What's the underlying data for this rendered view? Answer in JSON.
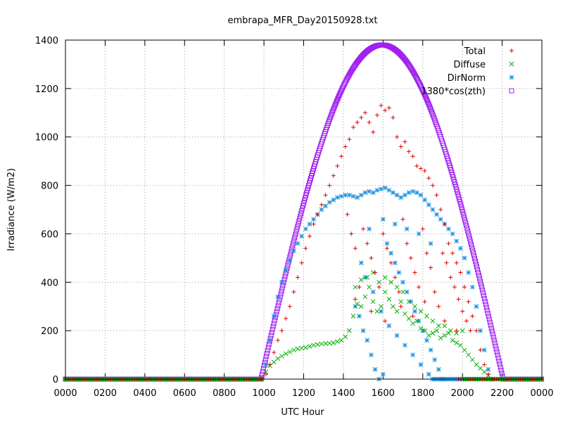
{
  "chart_data": {
    "type": "scatter",
    "title": "embrapa_MFR_Day20150928.txt",
    "xlabel": "UTC Hour",
    "ylabel": "Irradiance (W/m2)",
    "xlim": [
      0,
      24
    ],
    "ylim": [
      0,
      1400
    ],
    "grid": true,
    "legend_position": "top-right",
    "x_ticks": [
      {
        "x": 0,
        "label": "0000"
      },
      {
        "x": 2,
        "label": "0200"
      },
      {
        "x": 4,
        "label": "0400"
      },
      {
        "x": 6,
        "label": "0600"
      },
      {
        "x": 8,
        "label": "0800"
      },
      {
        "x": 10,
        "label": "1000"
      },
      {
        "x": 12,
        "label": "1200"
      },
      {
        "x": 14,
        "label": "1400"
      },
      {
        "x": 16,
        "label": "1600"
      },
      {
        "x": 18,
        "label": "1800"
      },
      {
        "x": 20,
        "label": "2000"
      },
      {
        "x": 22,
        "label": "2200"
      },
      {
        "x": 24,
        "label": "0000"
      }
    ],
    "y_ticks": [
      0,
      200,
      400,
      600,
      800,
      1000,
      1200,
      1400
    ],
    "series": [
      {
        "name": "Total",
        "marker": "plus",
        "color": "#e00000",
        "points": [
          [
            9.9,
            0
          ],
          [
            10.1,
            20
          ],
          [
            10.3,
            60
          ],
          [
            10.5,
            110
          ],
          [
            10.7,
            160
          ],
          [
            10.9,
            200
          ],
          [
            11.1,
            250
          ],
          [
            11.3,
            300
          ],
          [
            11.5,
            360
          ],
          [
            11.7,
            420
          ],
          [
            11.9,
            480
          ],
          [
            12.1,
            540
          ],
          [
            12.3,
            590
          ],
          [
            12.5,
            640
          ],
          [
            12.7,
            680
          ],
          [
            12.9,
            720
          ],
          [
            13.1,
            760
          ],
          [
            13.3,
            800
          ],
          [
            13.5,
            840
          ],
          [
            13.7,
            880
          ],
          [
            13.9,
            920
          ],
          [
            14.1,
            960
          ],
          [
            14.3,
            990
          ],
          [
            14.5,
            1040
          ],
          [
            14.7,
            1060
          ],
          [
            14.9,
            1080
          ],
          [
            15.1,
            1100
          ],
          [
            15.3,
            1060
          ],
          [
            15.5,
            1020
          ],
          [
            15.7,
            1090
          ],
          [
            15.9,
            1130
          ],
          [
            16.1,
            1110
          ],
          [
            16.3,
            1120
          ],
          [
            16.5,
            1080
          ],
          [
            16.7,
            1000
          ],
          [
            16.9,
            960
          ],
          [
            17.1,
            980
          ],
          [
            17.3,
            940
          ],
          [
            17.5,
            920
          ],
          [
            17.7,
            880
          ],
          [
            17.9,
            870
          ],
          [
            18.1,
            860
          ],
          [
            18.3,
            830
          ],
          [
            18.5,
            800
          ],
          [
            18.7,
            760
          ],
          [
            18.9,
            700
          ],
          [
            19.1,
            640
          ],
          [
            19.3,
            560
          ],
          [
            19.5,
            520
          ],
          [
            19.7,
            480
          ],
          [
            19.9,
            440
          ],
          [
            20.1,
            380
          ],
          [
            20.3,
            320
          ],
          [
            20.5,
            260
          ],
          [
            20.7,
            200
          ],
          [
            20.9,
            120
          ],
          [
            21.1,
            60
          ],
          [
            21.3,
            20
          ],
          [
            21.5,
            0
          ],
          [
            15.0,
            620
          ],
          [
            15.2,
            560
          ],
          [
            15.4,
            500
          ],
          [
            15.6,
            440
          ],
          [
            15.8,
            380
          ],
          [
            16.0,
            600
          ],
          [
            16.2,
            540
          ],
          [
            16.4,
            480
          ],
          [
            16.6,
            420
          ],
          [
            16.8,
            360
          ],
          [
            17.0,
            660
          ],
          [
            17.2,
            560
          ],
          [
            17.4,
            500
          ],
          [
            17.6,
            440
          ],
          [
            17.8,
            380
          ],
          [
            18.0,
            620
          ],
          [
            18.2,
            520
          ],
          [
            18.4,
            460
          ],
          [
            18.6,
            360
          ],
          [
            18.8,
            300
          ],
          [
            19.0,
            520
          ],
          [
            19.2,
            480
          ],
          [
            19.4,
            420
          ],
          [
            19.6,
            380
          ],
          [
            19.8,
            330
          ],
          [
            20.0,
            280
          ],
          [
            20.2,
            240
          ],
          [
            20.4,
            200
          ],
          [
            14.2,
            680
          ],
          [
            14.4,
            600
          ],
          [
            14.6,
            540
          ],
          [
            14.8,
            380
          ],
          [
            14.6,
            330
          ],
          [
            15.4,
            280
          ],
          [
            16.1,
            240
          ],
          [
            16.9,
            300
          ],
          [
            17.5,
            260
          ],
          [
            18.1,
            320
          ],
          [
            19.1,
            240
          ],
          [
            19.7,
            200
          ]
        ]
      },
      {
        "name": "Diffuse",
        "marker": "cross",
        "color": "#00b000",
        "points": [
          [
            9.9,
            0
          ],
          [
            10.1,
            30
          ],
          [
            10.3,
            55
          ],
          [
            10.5,
            70
          ],
          [
            10.7,
            85
          ],
          [
            10.9,
            95
          ],
          [
            11.1,
            105
          ],
          [
            11.3,
            112
          ],
          [
            11.5,
            120
          ],
          [
            11.7,
            125
          ],
          [
            11.9,
            128
          ],
          [
            12.1,
            130
          ],
          [
            12.3,
            135
          ],
          [
            12.5,
            140
          ],
          [
            12.7,
            143
          ],
          [
            12.9,
            145
          ],
          [
            13.1,
            147
          ],
          [
            13.3,
            148
          ],
          [
            13.5,
            150
          ],
          [
            13.7,
            155
          ],
          [
            13.9,
            160
          ],
          [
            14.1,
            175
          ],
          [
            14.3,
            200
          ],
          [
            14.5,
            260
          ],
          [
            14.7,
            310
          ],
          [
            14.9,
            300
          ],
          [
            15.1,
            340
          ],
          [
            15.3,
            380
          ],
          [
            15.5,
            320
          ],
          [
            15.7,
            280
          ],
          [
            15.9,
            300
          ],
          [
            16.1,
            360
          ],
          [
            16.3,
            330
          ],
          [
            16.5,
            300
          ],
          [
            16.7,
            280
          ],
          [
            16.9,
            320
          ],
          [
            17.1,
            270
          ],
          [
            17.3,
            250
          ],
          [
            17.5,
            230
          ],
          [
            17.7,
            240
          ],
          [
            17.9,
            210
          ],
          [
            18.1,
            200
          ],
          [
            18.3,
            180
          ],
          [
            18.5,
            190
          ],
          [
            18.7,
            200
          ],
          [
            18.9,
            170
          ],
          [
            19.1,
            180
          ],
          [
            19.3,
            190
          ],
          [
            19.5,
            160
          ],
          [
            19.7,
            150
          ],
          [
            19.9,
            140
          ],
          [
            20.1,
            120
          ],
          [
            20.3,
            100
          ],
          [
            20.5,
            80
          ],
          [
            20.7,
            60
          ],
          [
            20.9,
            45
          ],
          [
            21.1,
            30
          ],
          [
            21.3,
            15
          ],
          [
            21.5,
            0
          ],
          [
            14.6,
            380
          ],
          [
            14.9,
            410
          ],
          [
            15.2,
            420
          ],
          [
            15.5,
            440
          ],
          [
            15.8,
            400
          ],
          [
            16.1,
            420
          ],
          [
            16.4,
            400
          ],
          [
            16.7,
            380
          ],
          [
            17.0,
            360
          ],
          [
            17.3,
            320
          ],
          [
            17.6,
            300
          ],
          [
            17.9,
            280
          ],
          [
            18.2,
            260
          ],
          [
            18.5,
            240
          ],
          [
            18.8,
            220
          ],
          [
            19.1,
            220
          ],
          [
            19.4,
            200
          ],
          [
            19.7,
            190
          ],
          [
            20.0,
            200
          ]
        ]
      },
      {
        "name": "DirNorm",
        "marker": "star",
        "color": "#1a90e0",
        "points": [
          [
            9.9,
            0
          ],
          [
            10.1,
            60
          ],
          [
            10.3,
            160
          ],
          [
            10.5,
            260
          ],
          [
            10.7,
            340
          ],
          [
            10.9,
            400
          ],
          [
            11.1,
            450
          ],
          [
            11.3,
            490
          ],
          [
            11.5,
            530
          ],
          [
            11.7,
            560
          ],
          [
            11.9,
            590
          ],
          [
            12.1,
            620
          ],
          [
            12.3,
            640
          ],
          [
            12.5,
            660
          ],
          [
            12.7,
            680
          ],
          [
            12.9,
            700
          ],
          [
            13.1,
            715
          ],
          [
            13.3,
            730
          ],
          [
            13.5,
            740
          ],
          [
            13.7,
            750
          ],
          [
            13.9,
            755
          ],
          [
            14.1,
            760
          ],
          [
            14.3,
            760
          ],
          [
            14.5,
            755
          ],
          [
            14.7,
            750
          ],
          [
            14.9,
            760
          ],
          [
            15.1,
            770
          ],
          [
            15.3,
            775
          ],
          [
            15.5,
            770
          ],
          [
            15.7,
            780
          ],
          [
            15.9,
            785
          ],
          [
            16.1,
            790
          ],
          [
            16.3,
            780
          ],
          [
            16.5,
            770
          ],
          [
            16.7,
            760
          ],
          [
            16.9,
            750
          ],
          [
            17.1,
            760
          ],
          [
            17.3,
            770
          ],
          [
            17.5,
            775
          ],
          [
            17.7,
            770
          ],
          [
            17.9,
            760
          ],
          [
            18.1,
            740
          ],
          [
            18.3,
            720
          ],
          [
            18.5,
            700
          ],
          [
            18.7,
            680
          ],
          [
            18.9,
            660
          ],
          [
            19.1,
            640
          ],
          [
            19.3,
            620
          ],
          [
            19.5,
            600
          ],
          [
            19.7,
            570
          ],
          [
            19.9,
            540
          ],
          [
            20.1,
            500
          ],
          [
            20.3,
            440
          ],
          [
            20.5,
            380
          ],
          [
            20.7,
            300
          ],
          [
            20.9,
            200
          ],
          [
            21.1,
            120
          ],
          [
            21.3,
            40
          ],
          [
            21.5,
            0
          ],
          [
            14.6,
            300
          ],
          [
            14.8,
            260
          ],
          [
            15.0,
            200
          ],
          [
            15.2,
            160
          ],
          [
            15.4,
            100
          ],
          [
            15.6,
            40
          ],
          [
            15.8,
            0
          ],
          [
            16.0,
            20
          ],
          [
            16.2,
            560
          ],
          [
            16.4,
            520
          ],
          [
            16.6,
            480
          ],
          [
            16.8,
            440
          ],
          [
            17.0,
            400
          ],
          [
            17.2,
            360
          ],
          [
            17.4,
            320
          ],
          [
            17.6,
            280
          ],
          [
            17.8,
            240
          ],
          [
            18.0,
            200
          ],
          [
            18.2,
            160
          ],
          [
            18.4,
            120
          ],
          [
            18.6,
            80
          ],
          [
            18.8,
            40
          ],
          [
            19.0,
            0
          ],
          [
            14.9,
            480
          ],
          [
            15.1,
            420
          ],
          [
            15.5,
            360
          ],
          [
            15.9,
            280
          ],
          [
            16.3,
            220
          ],
          [
            16.7,
            180
          ],
          [
            17.1,
            140
          ],
          [
            17.5,
            100
          ],
          [
            17.9,
            60
          ],
          [
            18.3,
            20
          ],
          [
            15.3,
            620
          ],
          [
            16.0,
            660
          ],
          [
            16.6,
            640
          ],
          [
            17.2,
            620
          ],
          [
            17.8,
            600
          ],
          [
            18.4,
            560
          ]
        ]
      },
      {
        "name": "1380*cos(zth)",
        "marker": "square",
        "color": "#a020f0",
        "function": "solar",
        "peak": 1380,
        "x_start": 9.85,
        "x_end": 22.05,
        "x_peak": 15.95
      }
    ]
  }
}
